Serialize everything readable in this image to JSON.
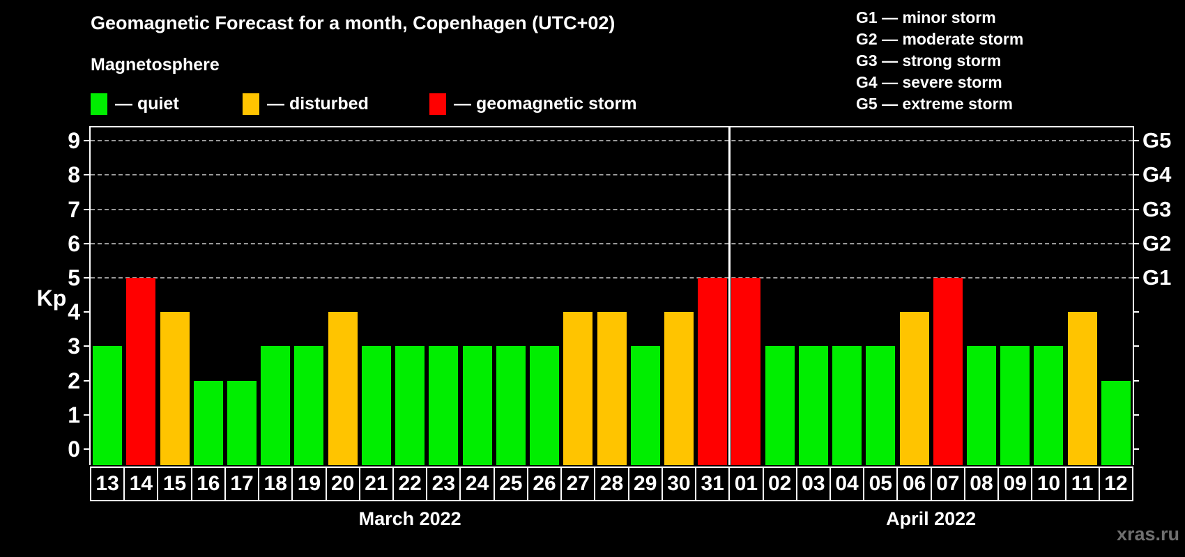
{
  "title": "Geomagnetic Forecast for a month, Copenhagen (UTC+02)",
  "subtitle": "Magnetosphere",
  "legend": {
    "items": [
      {
        "name": "quiet",
        "label": "— quiet",
        "color": "#00ee00"
      },
      {
        "name": "disturbed",
        "label": "— disturbed",
        "color": "#ffc400"
      },
      {
        "name": "storm",
        "label": "— geomagnetic storm",
        "color": "#ff0000"
      }
    ]
  },
  "g_legend": [
    {
      "code": "G1",
      "desc": "minor storm",
      "label": "G1 — minor storm",
      "kp": 5
    },
    {
      "code": "G2",
      "desc": "moderate storm",
      "label": "G2 — moderate storm",
      "kp": 6
    },
    {
      "code": "G3",
      "desc": "strong storm",
      "label": "G3 — strong storm",
      "kp": 7
    },
    {
      "code": "G4",
      "desc": "severe storm",
      "label": "G4 — severe storm",
      "kp": 8
    },
    {
      "code": "G5",
      "desc": "extreme storm",
      "label": "G5 — extreme storm",
      "kp": 9
    }
  ],
  "watermark": "xras.ru",
  "chart_data": {
    "type": "bar",
    "title": "Geomagnetic Forecast for a month, Copenhagen (UTC+02)",
    "ylabel": "Kp",
    "ylim": [
      0,
      9
    ],
    "y_ticks": [
      0,
      1,
      2,
      3,
      4,
      5,
      6,
      7,
      8,
      9
    ],
    "grid_values": [
      5,
      6,
      7,
      8,
      9
    ],
    "grid_style": "dashed horizontal lines at Kp 5 through 9 only",
    "legend_position": "top-left",
    "status_colors": {
      "quiet": "#00ee00",
      "disturbed": "#ffc400",
      "storm": "#ff0000"
    },
    "months": [
      {
        "label": "March 2022",
        "days": [
          {
            "day": "13",
            "kp": 3,
            "status": "quiet"
          },
          {
            "day": "14",
            "kp": 5,
            "status": "storm"
          },
          {
            "day": "15",
            "kp": 4,
            "status": "disturbed"
          },
          {
            "day": "16",
            "kp": 2,
            "status": "quiet"
          },
          {
            "day": "17",
            "kp": 2,
            "status": "quiet"
          },
          {
            "day": "18",
            "kp": 3,
            "status": "quiet"
          },
          {
            "day": "19",
            "kp": 3,
            "status": "quiet"
          },
          {
            "day": "20",
            "kp": 4,
            "status": "disturbed"
          },
          {
            "day": "21",
            "kp": 3,
            "status": "quiet"
          },
          {
            "day": "22",
            "kp": 3,
            "status": "quiet"
          },
          {
            "day": "23",
            "kp": 3,
            "status": "quiet"
          },
          {
            "day": "24",
            "kp": 3,
            "status": "quiet"
          },
          {
            "day": "25",
            "kp": 3,
            "status": "quiet"
          },
          {
            "day": "26",
            "kp": 3,
            "status": "quiet"
          },
          {
            "day": "27",
            "kp": 4,
            "status": "disturbed"
          },
          {
            "day": "28",
            "kp": 4,
            "status": "disturbed"
          },
          {
            "day": "29",
            "kp": 3,
            "status": "quiet"
          },
          {
            "day": "30",
            "kp": 4,
            "status": "disturbed"
          },
          {
            "day": "31",
            "kp": 5,
            "status": "storm"
          }
        ]
      },
      {
        "label": "April 2022",
        "days": [
          {
            "day": "01",
            "kp": 5,
            "status": "storm"
          },
          {
            "day": "02",
            "kp": 3,
            "status": "quiet"
          },
          {
            "day": "03",
            "kp": 3,
            "status": "quiet"
          },
          {
            "day": "04",
            "kp": 3,
            "status": "quiet"
          },
          {
            "day": "05",
            "kp": 3,
            "status": "quiet"
          },
          {
            "day": "06",
            "kp": 4,
            "status": "disturbed"
          },
          {
            "day": "07",
            "kp": 5,
            "status": "storm"
          },
          {
            "day": "08",
            "kp": 3,
            "status": "quiet"
          },
          {
            "day": "09",
            "kp": 3,
            "status": "quiet"
          },
          {
            "day": "10",
            "kp": 3,
            "status": "quiet"
          },
          {
            "day": "11",
            "kp": 4,
            "status": "disturbed"
          },
          {
            "day": "12",
            "kp": 2,
            "status": "quiet"
          }
        ]
      }
    ]
  }
}
